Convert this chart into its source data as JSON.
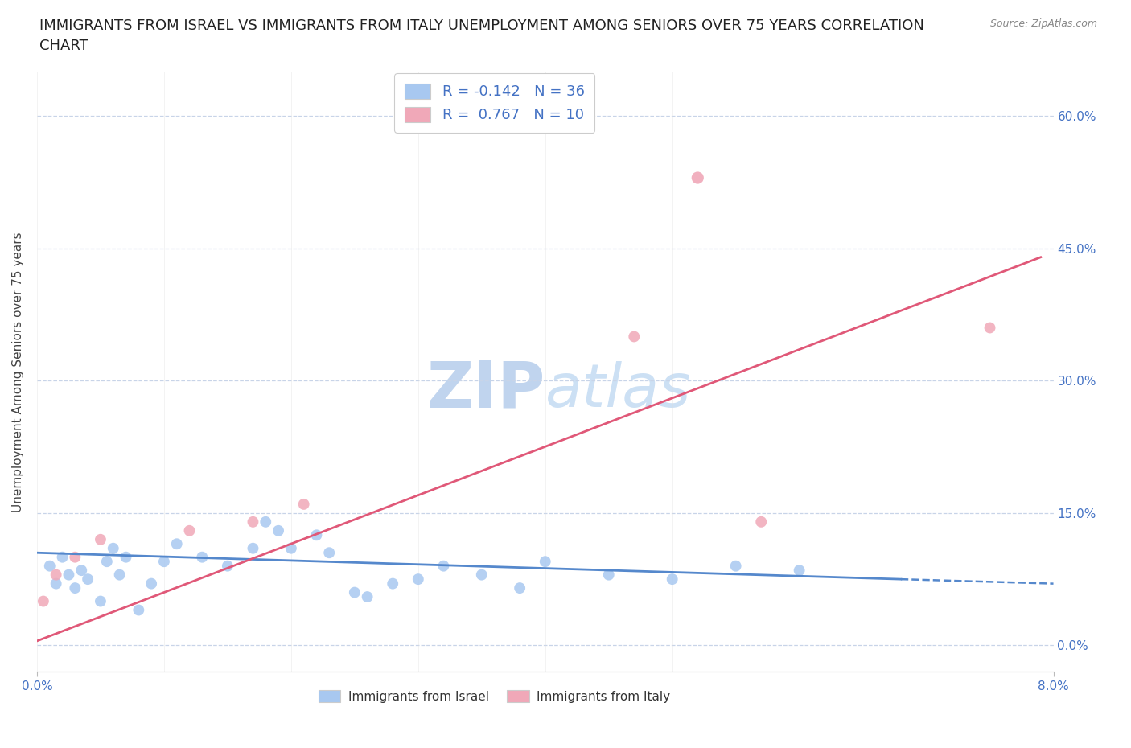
{
  "title": "IMMIGRANTS FROM ISRAEL VS IMMIGRANTS FROM ITALY UNEMPLOYMENT AMONG SENIORS OVER 75 YEARS CORRELATION\nCHART",
  "source_text": "Source: ZipAtlas.com",
  "ylabel": "Unemployment Among Seniors over 75 years",
  "ytick_values": [
    0.0,
    15.0,
    30.0,
    45.0,
    60.0
  ],
  "xlim": [
    0.0,
    8.0
  ],
  "ylim": [
    -3.0,
    65.0
  ],
  "color_israel": "#a8c8f0",
  "color_italy": "#f0a8b8",
  "color_line_israel": "#5588cc",
  "color_line_italy": "#e05878",
  "color_blue_text": "#4472c4",
  "watermark_color": "#dce8f5",
  "background_color": "#ffffff",
  "grid_color": "#c8d4e8",
  "title_fontsize": 13,
  "axis_label_fontsize": 11,
  "tick_fontsize": 11,
  "legend_fontsize": 13,
  "watermark_fontsize": 58,
  "israel_scatter_x": [
    0.1,
    0.15,
    0.2,
    0.25,
    0.3,
    0.35,
    0.4,
    0.5,
    0.55,
    0.6,
    0.65,
    0.7,
    0.8,
    0.9,
    1.0,
    1.1,
    1.3,
    1.5,
    1.7,
    1.8,
    1.9,
    2.0,
    2.2,
    2.3,
    2.5,
    2.6,
    2.8,
    3.0,
    3.2,
    3.5,
    3.8,
    4.0,
    4.5,
    5.0,
    5.5,
    6.0
  ],
  "israel_scatter_y": [
    9.0,
    7.0,
    10.0,
    8.0,
    6.5,
    8.5,
    7.5,
    5.0,
    9.5,
    11.0,
    8.0,
    10.0,
    4.0,
    7.0,
    9.5,
    11.5,
    10.0,
    9.0,
    11.0,
    14.0,
    13.0,
    11.0,
    12.5,
    10.5,
    6.0,
    5.5,
    7.0,
    7.5,
    9.0,
    8.0,
    6.5,
    9.5,
    8.0,
    7.5,
    9.0,
    8.5
  ],
  "italy_scatter_x": [
    0.05,
    0.15,
    0.3,
    0.5,
    1.2,
    1.7,
    2.1,
    4.7,
    5.7
  ],
  "italy_scatter_y": [
    5.0,
    8.0,
    10.0,
    12.0,
    13.0,
    14.0,
    16.0,
    35.0,
    14.0
  ],
  "italy_scatter_x2": [
    7.5
  ],
  "italy_scatter_y2": [
    36.0
  ],
  "italy_outlier_x": [
    5.2
  ],
  "italy_outlier_y": [
    53.0
  ],
  "israel_trend_x1": 0.0,
  "israel_trend_y1": 10.5,
  "israel_trend_x2": 6.8,
  "israel_trend_y2": 7.5,
  "israel_dash_x1": 6.8,
  "israel_dash_y1": 7.5,
  "israel_dash_x2": 8.0,
  "israel_dash_y2": 7.0,
  "italy_trend_x1": 0.0,
  "italy_trend_y1": 0.5,
  "italy_trend_x2": 7.9,
  "italy_trend_y2": 44.0
}
